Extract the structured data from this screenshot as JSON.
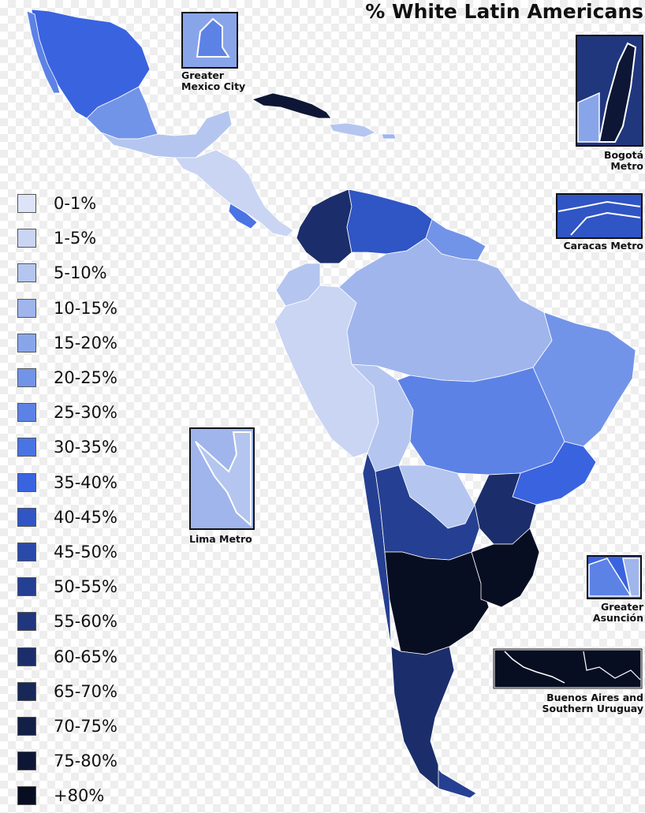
{
  "title": "% White Latin Americans",
  "legend": [
    {
      "label": "0-1%",
      "color": "#dde4f7"
    },
    {
      "label": "1-5%",
      "color": "#c9d5f3"
    },
    {
      "label": "5-10%",
      "color": "#b4c6ef"
    },
    {
      "label": "10-15%",
      "color": "#9fb5ec"
    },
    {
      "label": "15-20%",
      "color": "#89a5ea"
    },
    {
      "label": "20-25%",
      "color": "#7294e8"
    },
    {
      "label": "25-30%",
      "color": "#5d82e6"
    },
    {
      "label": "30-35%",
      "color": "#4a73e4"
    },
    {
      "label": "35-40%",
      "color": "#3a63e0"
    },
    {
      "label": "40-45%",
      "color": "#3055c4"
    },
    {
      "label": "45-50%",
      "color": "#2a49a8"
    },
    {
      "label": "50-55%",
      "color": "#253f92"
    },
    {
      "label": "55-60%",
      "color": "#20377e"
    },
    {
      "label": "60-65%",
      "color": "#1b2e6b"
    },
    {
      "label": "65-70%",
      "color": "#172758"
    },
    {
      "label": "70-75%",
      "color": "#121f46"
    },
    {
      "label": "75-80%",
      "color": "#0d1735"
    },
    {
      "label": "+80%",
      "color": "#080e22"
    }
  ],
  "insets": {
    "mexico_city": {
      "label": "Greater\nMexico City"
    },
    "bogota": {
      "label": "Bogotá\nMetro"
    },
    "caracas": {
      "label": "Caracas Metro"
    },
    "lima": {
      "label": "Lima Metro"
    },
    "asuncion": {
      "label": "Greater\nAsunción"
    },
    "buenos_aires": {
      "label": "Buenos Aires and\nSouthern Uruguay"
    }
  }
}
